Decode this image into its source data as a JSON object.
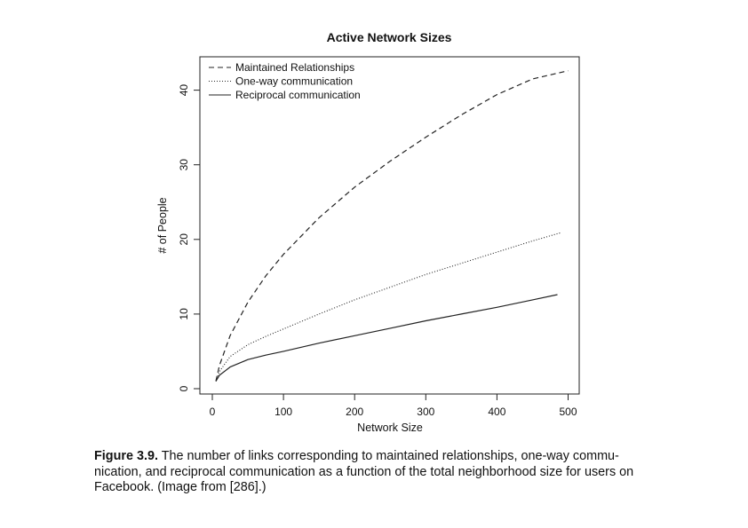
{
  "chart_data": {
    "type": "line",
    "title": "Active Network Sizes",
    "xlabel": "Network Size",
    "ylabel": "# of People",
    "xlim": [
      0,
      512
    ],
    "ylim": [
      -0.8,
      44.5
    ],
    "xticks": [
      "0",
      "100",
      "200",
      "300",
      "400",
      "500"
    ],
    "yticks": [
      "0",
      "10",
      "20",
      "30",
      "40"
    ],
    "legend_position": "top-left",
    "grid": false,
    "series": [
      {
        "name": "Maintained Relationships",
        "style": "dashed",
        "color": "#222222",
        "x": [
          5,
          10,
          25,
          50,
          75,
          100,
          150,
          200,
          250,
          300,
          350,
          400,
          450,
          500
        ],
        "y": [
          1.0,
          3.1,
          7.1,
          11.6,
          15.1,
          18.0,
          22.9,
          27.0,
          30.5,
          33.7,
          36.7,
          39.4,
          41.5,
          42.6
        ]
      },
      {
        "name": "One-way communication",
        "style": "dotted",
        "color": "#222222",
        "x": [
          5,
          10,
          25,
          50,
          75,
          100,
          150,
          200,
          250,
          300,
          350,
          400,
          450,
          490
        ],
        "y": [
          1.0,
          2.3,
          4.3,
          5.9,
          7.0,
          8.0,
          10.0,
          11.9,
          13.6,
          15.3,
          16.8,
          18.3,
          19.8,
          20.9
        ]
      },
      {
        "name": "Reciprocal communication",
        "style": "solid",
        "color": "#222222",
        "x": [
          5,
          10,
          25,
          50,
          75,
          100,
          150,
          200,
          250,
          300,
          350,
          400,
          450,
          485
        ],
        "y": [
          1.0,
          1.8,
          2.9,
          3.9,
          4.5,
          5.0,
          6.1,
          7.1,
          8.1,
          9.1,
          10.0,
          10.9,
          11.9,
          12.6
        ]
      }
    ]
  },
  "caption": {
    "label": "Figure 3.9.",
    "text": "The number of links corresponding to maintained relationships, one-way commu- nication, and reciprocal communication as a function of the total neighborhood size for users on Facebook. (Image from [286].)"
  }
}
